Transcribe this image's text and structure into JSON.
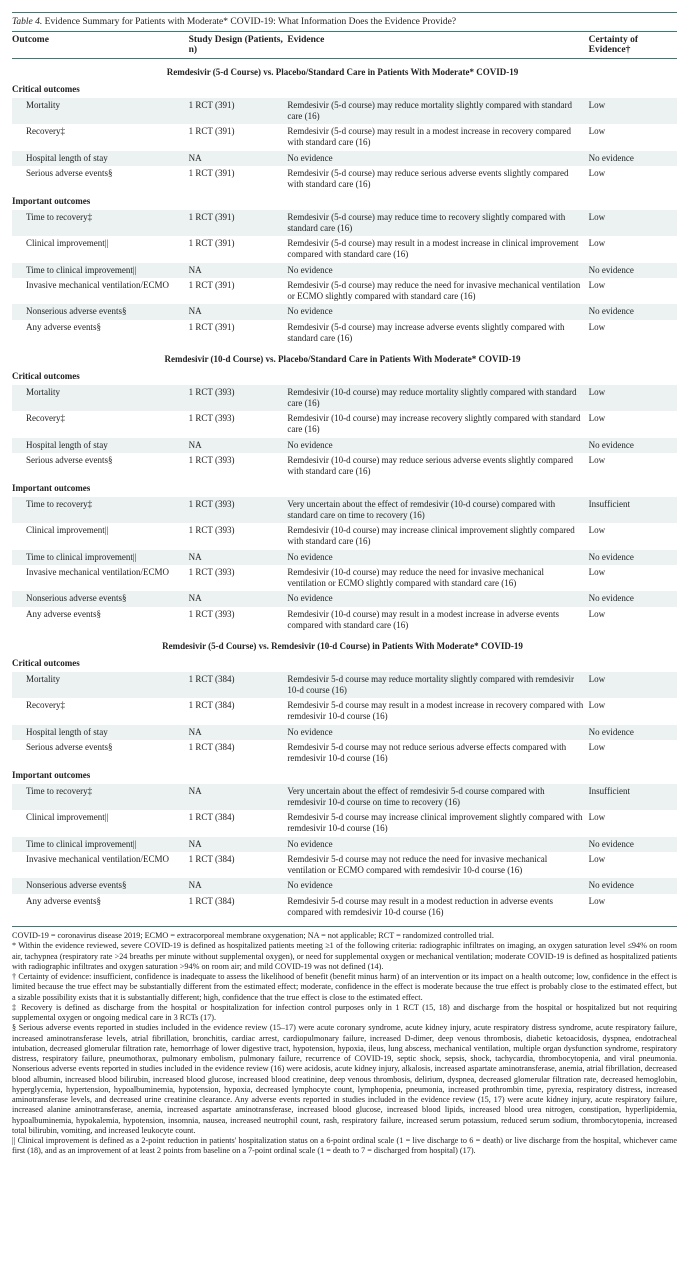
{
  "table_label": "Table 4.",
  "title": "Evidence Summary for Patients with Moderate* COVID-19: What Information Does the Evidence Provide?",
  "colors": {
    "rule": "#3a7b78",
    "band": "#ecf2f2",
    "text": "#222222",
    "bg": "#ffffff"
  },
  "headers": {
    "outcome": "Outcome",
    "study": "Study Design (Patients, n)",
    "evidence": "Evidence",
    "certainty": "Certainty of Evidence†"
  },
  "sections": [
    {
      "title": "Remdesivir (5-d Course) vs. Placebo/Standard Care in Patients With Moderate* COVID-19",
      "groups": [
        {
          "label": "Critical outcomes",
          "rows": [
            {
              "band": true,
              "outcome": "Mortality",
              "study": "1 RCT (391)",
              "evidence": "Remdesivir (5-d course) may reduce mortality slightly compared with standard care (16)",
              "certainty": "Low"
            },
            {
              "band": false,
              "outcome": "Recovery‡",
              "study": "1 RCT (391)",
              "evidence": "Remdesivir (5-d course) may result in a modest increase in recovery compared with standard care (16)",
              "certainty": "Low"
            },
            {
              "band": true,
              "outcome": "Hospital length of stay",
              "study": "NA",
              "evidence": "No evidence",
              "certainty": "No evidence"
            },
            {
              "band": false,
              "outcome": "Serious adverse events§",
              "study": "1 RCT (391)",
              "evidence": "Remdesivir (5-d course) may reduce serious adverse events slightly compared with standard care (16)",
              "certainty": "Low"
            }
          ]
        },
        {
          "label": "Important outcomes",
          "rows": [
            {
              "band": true,
              "outcome": "Time to recovery‡",
              "study": "1 RCT (391)",
              "evidence": "Remdesivir (5-d course) may reduce time to recovery slightly compared with standard care (16)",
              "certainty": "Low"
            },
            {
              "band": false,
              "outcome": "Clinical improvement||",
              "study": "1 RCT (391)",
              "evidence": "Remdesivir (5-d course) may result in a modest increase in clinical improvement compared with standard care (16)",
              "certainty": "Low"
            },
            {
              "band": true,
              "outcome": "Time to clinical improvement||",
              "study": "NA",
              "evidence": "No evidence",
              "certainty": "No evidence"
            },
            {
              "band": false,
              "outcome": "Invasive mechanical ventilation/ECMO",
              "study": "1 RCT (391)",
              "evidence": "Remdesivir (5-d course) may reduce the need for invasive mechanical ventilation or ECMO slightly compared with standard care (16)",
              "certainty": "Low"
            },
            {
              "band": true,
              "outcome": "Nonserious adverse events§",
              "study": "NA",
              "evidence": "No evidence",
              "certainty": "No evidence"
            },
            {
              "band": false,
              "outcome": "Any adverse events§",
              "study": "1 RCT (391)",
              "evidence": "Remdesivir (5-d course) may increase adverse events slightly compared with standard care (16)",
              "certainty": "Low"
            }
          ]
        }
      ]
    },
    {
      "title": "Remdesivir (10-d Course) vs. Placebo/Standard Care in Patients With Moderate* COVID-19",
      "groups": [
        {
          "label": "Critical outcomes",
          "rows": [
            {
              "band": true,
              "outcome": "Mortality",
              "study": "1 RCT (393)",
              "evidence": "Remdesivir (10-d course) may reduce mortality slightly compared with standard care (16)",
              "certainty": "Low"
            },
            {
              "band": false,
              "outcome": "Recovery‡",
              "study": "1 RCT (393)",
              "evidence": "Remdesivir (10-d course) may increase recovery slightly compared with standard care (16)",
              "certainty": "Low"
            },
            {
              "band": true,
              "outcome": "Hospital length of stay",
              "study": "NA",
              "evidence": "No evidence",
              "certainty": "No evidence"
            },
            {
              "band": false,
              "outcome": "Serious adverse events§",
              "study": "1 RCT (393)",
              "evidence": "Remdesivir (10-d course) may reduce serious adverse events slightly compared with standard care (16)",
              "certainty": "Low"
            }
          ]
        },
        {
          "label": "Important outcomes",
          "rows": [
            {
              "band": true,
              "outcome": "Time to recovery‡",
              "study": "1 RCT (393)",
              "evidence": "Very uncertain about the effect of remdesivir (10-d course) compared with standard care on time to recovery (16)",
              "certainty": "Insufficient"
            },
            {
              "band": false,
              "outcome": "Clinical improvement||",
              "study": "1 RCT (393)",
              "evidence": "Remdesivir (10-d course) may increase clinical improvement slightly compared with standard care (16)",
              "certainty": "Low"
            },
            {
              "band": true,
              "outcome": "Time to clinical improvement||",
              "study": "NA",
              "evidence": "No evidence",
              "certainty": "No evidence"
            },
            {
              "band": false,
              "outcome": "Invasive mechanical ventilation/ECMO",
              "study": "1 RCT (393)",
              "evidence": "Remdesivir (10-d course) may reduce the need for invasive mechanical ventilation or ECMO slightly compared with standard care (16)",
              "certainty": "Low"
            },
            {
              "band": true,
              "outcome": "Nonserious adverse events§",
              "study": "NA",
              "evidence": "No evidence",
              "certainty": "No evidence"
            },
            {
              "band": false,
              "outcome": "Any adverse events§",
              "study": "1 RCT (393)",
              "evidence": "Remdesivir (10-d course) may result in a modest increase in adverse events compared with standard care (16)",
              "certainty": "Low"
            }
          ]
        }
      ]
    },
    {
      "title": "Remdesivir (5-d Course) vs. Remdesivir (10-d Course) in Patients With Moderate* COVID-19",
      "groups": [
        {
          "label": "Critical outcomes",
          "rows": [
            {
              "band": true,
              "outcome": "Mortality",
              "study": "1 RCT (384)",
              "evidence": "Remdesivir 5-d course may reduce mortality slightly compared with remdesivir 10-d course (16)",
              "certainty": "Low"
            },
            {
              "band": false,
              "outcome": "Recovery‡",
              "study": "1 RCT (384)",
              "evidence": "Remdesivir 5-d course may result in a modest increase in recovery compared with remdesivir 10-d course (16)",
              "certainty": "Low"
            },
            {
              "band": true,
              "outcome": "Hospital length of stay",
              "study": "NA",
              "evidence": "No evidence",
              "certainty": "No evidence"
            },
            {
              "band": false,
              "outcome": "Serious adverse events§",
              "study": "1 RCT (384)",
              "evidence": "Remdesivir 5-d course may not reduce serious adverse effects compared with remdesivir 10-d course (16)",
              "certainty": "Low"
            }
          ]
        },
        {
          "label": "Important outcomes",
          "rows": [
            {
              "band": true,
              "outcome": "Time to recovery‡",
              "study": "NA",
              "evidence": "Very uncertain about the effect of remdesivir 5-d course compared with remdesivir 10-d course on time to recovery (16)",
              "certainty": "Insufficient"
            },
            {
              "band": false,
              "outcome": "Clinical improvement||",
              "study": "1 RCT (384)",
              "evidence": "Remdesivir 5-d course may increase clinical improvement slightly compared with remdesivir 10-d course (16)",
              "certainty": "Low"
            },
            {
              "band": true,
              "outcome": "Time to clinical improvement||",
              "study": "NA",
              "evidence": "No evidence",
              "certainty": "No evidence"
            },
            {
              "band": false,
              "outcome": "Invasive mechanical ventilation/ECMO",
              "study": "1 RCT (384)",
              "evidence": "Remdesivir 5-d course may not reduce the need for invasive mechanical ventilation or ECMO compared with remdesivir 10-d course (16)",
              "certainty": "Low"
            },
            {
              "band": true,
              "outcome": "Nonserious adverse events§",
              "study": "NA",
              "evidence": "No evidence",
              "certainty": "No evidence"
            },
            {
              "band": false,
              "outcome": "Any adverse events§",
              "study": "1 RCT (384)",
              "evidence": "Remdesivir 5-d course may result in a modest reduction in adverse events compared with remdesivir 10-d course (16)",
              "certainty": "Low"
            }
          ]
        }
      ]
    }
  ],
  "footnotes": [
    "COVID-19 = coronavirus disease 2019; ECMO = extracorporeal membrane oxygenation; NA = not applicable; RCT = randomized controlled trial.",
    "* Within the evidence reviewed, severe COVID-19 is defined as hospitalized patients meeting ≥1 of the following criteria: radiographic infiltrates on imaging, an oxygen saturation level ≤94% on room air, tachypnea (respiratory rate >24 breaths per minute without supplemental oxygen), or need for supplemental oxygen or mechanical ventilation; moderate COVID-19 is defined as hospitalized patients with radiographic infiltrates and oxygen saturation >94% on room air; and mild COVID-19 was not defined (14).",
    "† Certainty of evidence: insufficient, confidence is inadequate to assess the likelihood of benefit (benefit minus harm) of an intervention or its impact on a health outcome; low, confidence in the effect is limited because the true effect may be substantially different from the estimated effect; moderate, confidence in the effect is moderate because the true effect is probably close to the estimated effect, but a sizable possibility exists that it is substantially different; high, confidence that the true effect is close to the estimated effect.",
    "‡ Recovery is defined as discharge from the hospital or hospitalization for infection control purposes only in 1 RCT (15, 18) and discharge from the hospital or hospitalized but not requiring supplemental oxygen or ongoing medical care in 3 RCTs (17).",
    "§ Serious adverse events reported in studies included in the evidence review (15–17) were acute coronary syndrome, acute kidney injury, acute respiratory distress syndrome, acute respiratory failure, increased aminotransferase levels, atrial fibrillation, bronchitis, cardiac arrest, cardiopulmonary failure, increased D-dimer, deep venous thrombosis, diabetic ketoacidosis, dyspnea, endotracheal intubation, decreased glomerular filtration rate, hemorrhage of lower digestive tract, hypotension, hypoxia, ileus, lung abscess, mechanical ventilation, multiple organ dysfunction syndrome, respiratory distress, respiratory failure, pneumothorax, pulmonary embolism, pulmonary failure, recurrence of COVID-19, septic shock, sepsis, shock, tachycardia, thrombocytopenia, and viral pneumonia. Nonserious adverse events reported in studies included in the evidence review (16) were acidosis, acute kidney injury, alkalosis, increased aspartate aminotransferase, anemia, atrial fibrillation, decreased blood albumin, increased blood bilirubin, increased blood glucose, increased blood creatinine, deep venous thrombosis, delirium, dyspnea, decreased glomerular filtration rate, decreased hemoglobin, hyperglycemia, hypertension, hypoalbuminemia, hypotension, hypoxia, decreased lymphocyte count, lymphopenia, pneumonia, increased prothrombin time, pyrexia, respiratory distress, increased aminotransferase levels, and decreased urine creatinine clearance. Any adverse events reported in studies included in the evidence review (15, 17) were acute kidney injury, acute respiratory failure, increased alanine aminotransferase, anemia, increased aspartate aminotransferase, increased blood glucose, increased blood lipids, increased blood urea nitrogen, constipation, hyperlipidemia, hypoalbuminemia, hypokalemia, hypotension, insomnia, nausea, increased neutrophil count, rash, respiratory failure, increased serum potassium, reduced serum sodium, thrombocytopenia, increased total bilirubin, vomiting, and increased leukocyte count.",
    "|| Clinical improvement is defined as a 2-point reduction in patients' hospitalization status on a 6-point ordinal scale (1 = live discharge to 6 = death) or live discharge from the hospital, whichever came first (18), and as an improvement of at least 2 points from baseline on a 7-point ordinal scale (1 = death to 7 = discharged from hospital) (17)."
  ]
}
